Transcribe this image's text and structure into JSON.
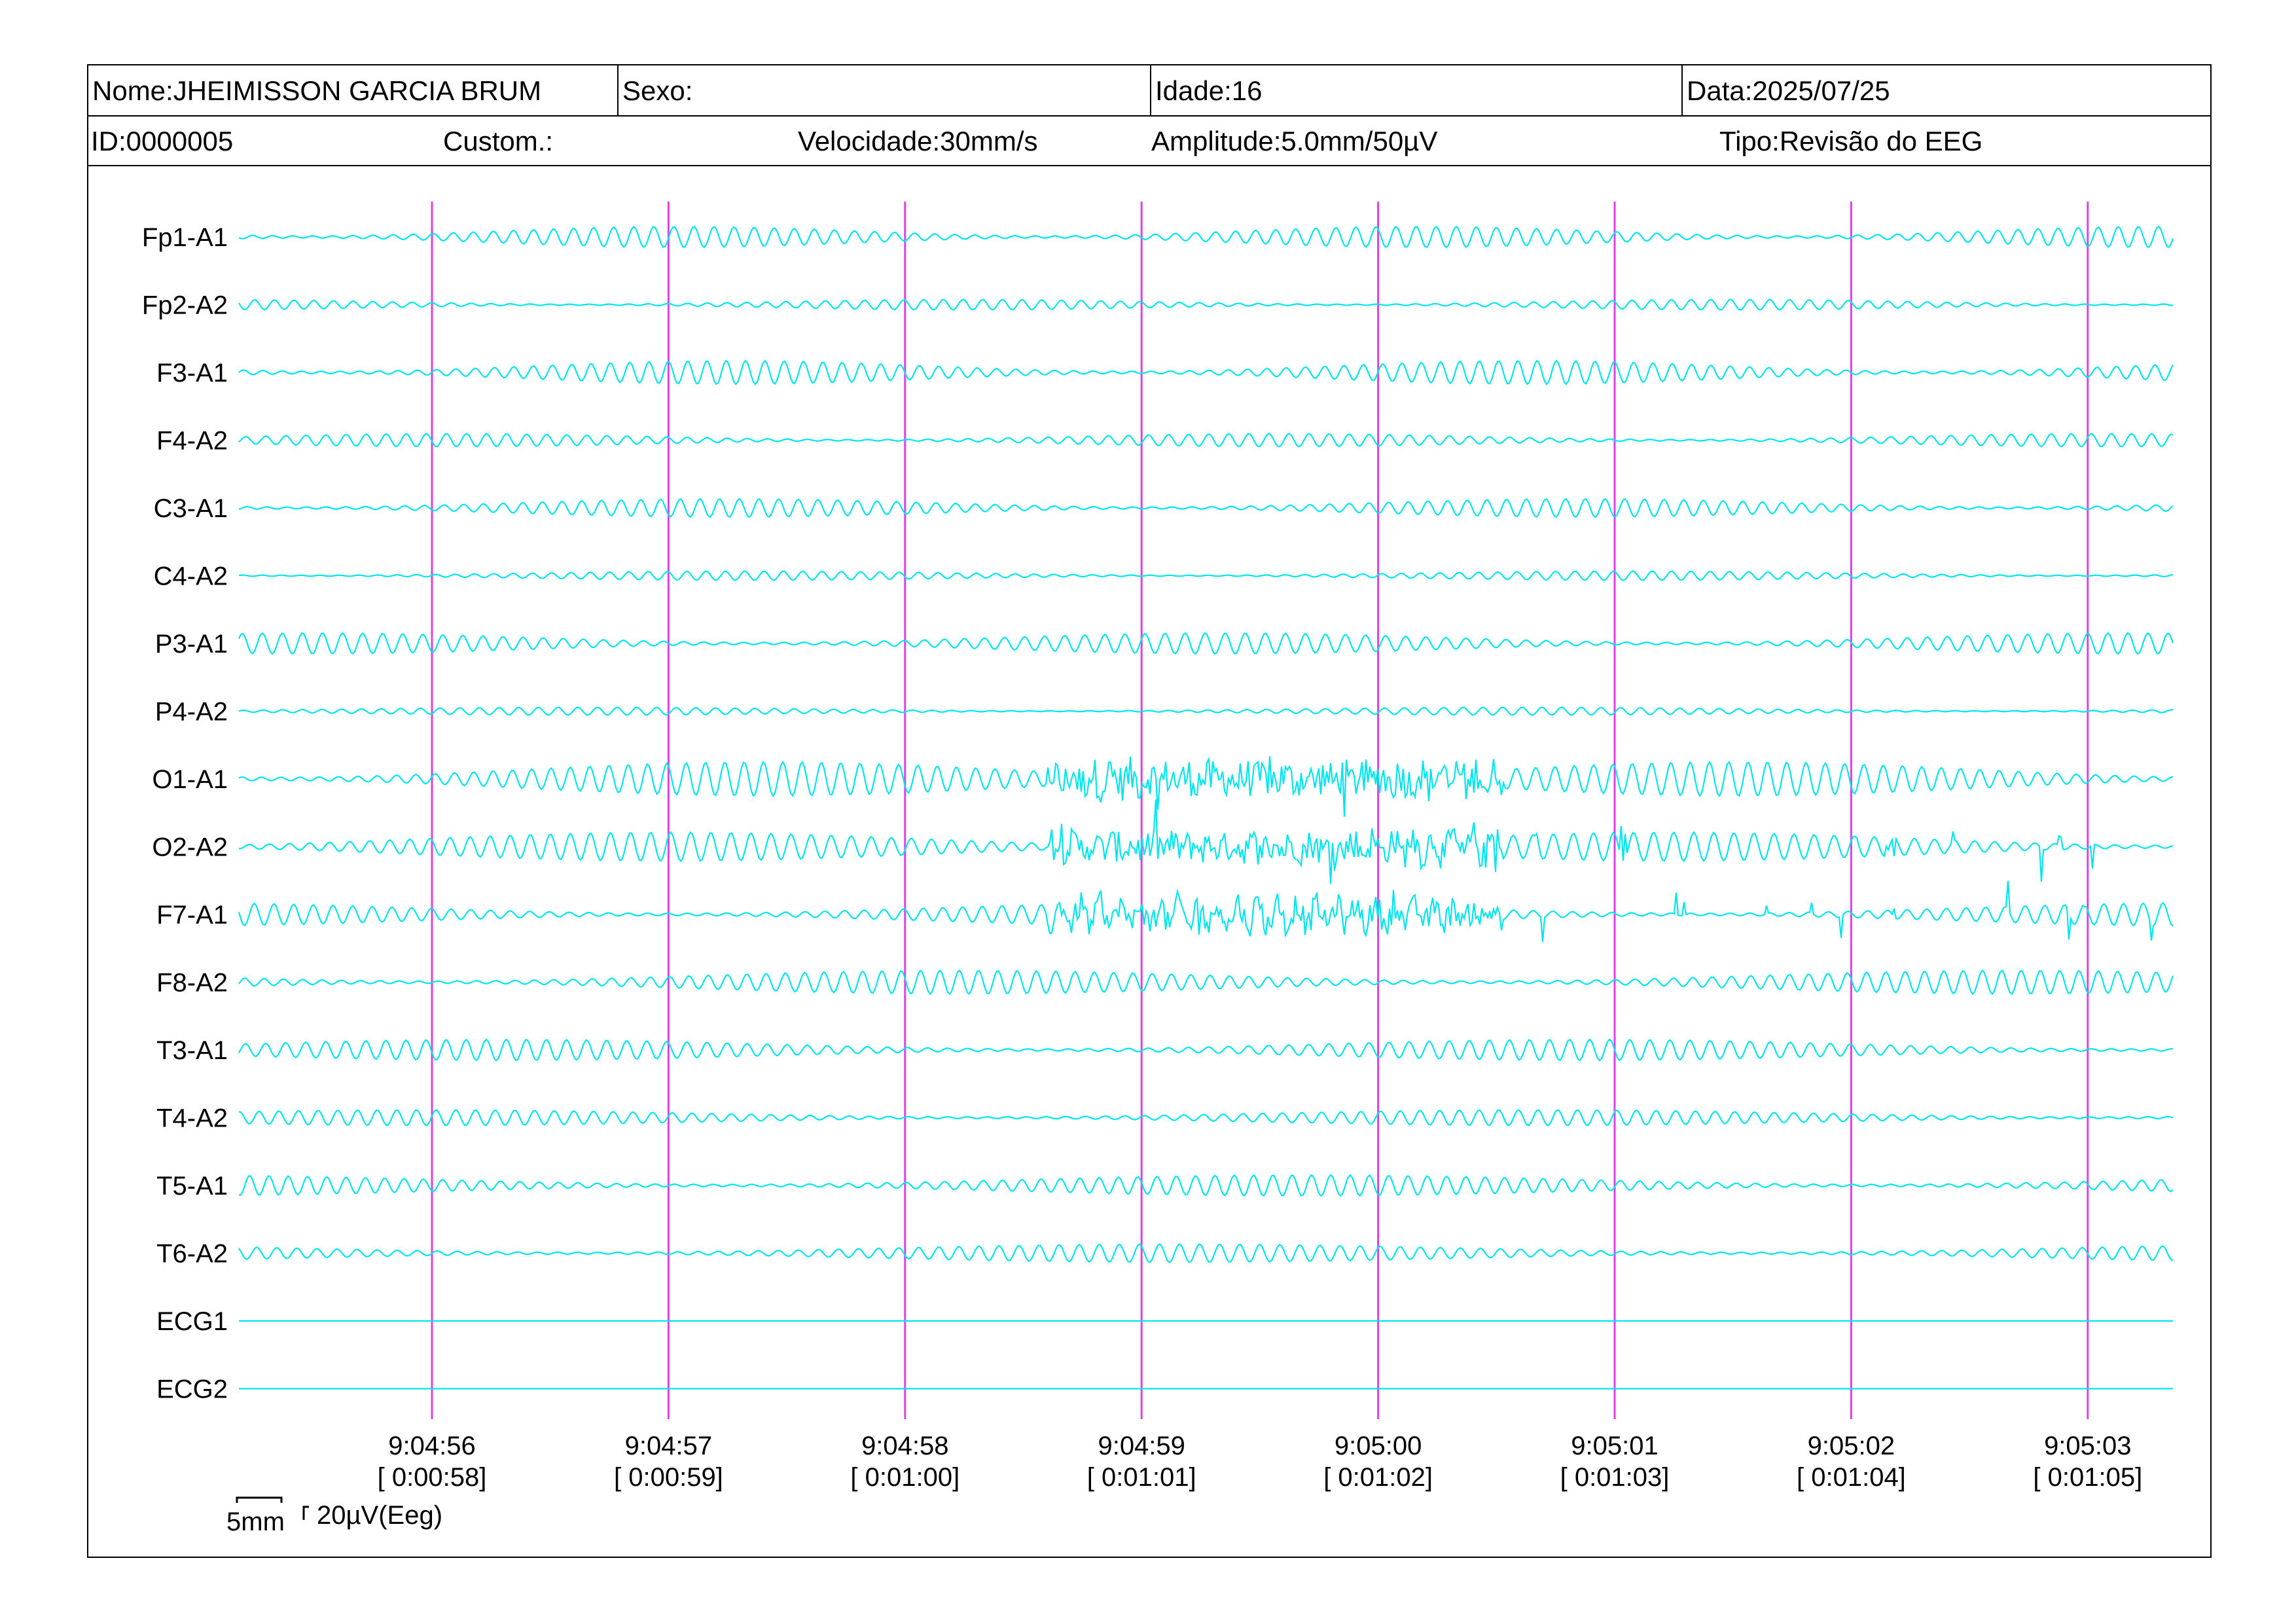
{
  "header": {
    "name_label": "Nome:JHEIMISSON GARCIA BRUM",
    "sex_label": "Sexo:",
    "age_label": "Idade:16",
    "date_label": "Data:2025/07/25",
    "id_label": "ID:0000005",
    "custom_label": "Custom.:",
    "speed_label": "Velocidade:30mm/s",
    "amplitude_label": "Amplitude:5.0mm/50µV",
    "type_label": "Tipo:Revisão do EEG"
  },
  "scale": {
    "time_label": "5mm",
    "amp_label": "20µV(Eeg)"
  },
  "colors": {
    "trace": "#00e5ee",
    "marker": "#e040e0",
    "text": "#000000",
    "border": "#000000"
  },
  "chart_data": {
    "type": "line",
    "title": "",
    "channels": [
      "Fp1-A1",
      "Fp2-A2",
      "F3-A1",
      "F4-A2",
      "C3-A1",
      "C4-A2",
      "P3-A1",
      "P4-A2",
      "O1-A1",
      "O2-A2",
      "F7-A1",
      "F8-A2",
      "T3-A1",
      "T4-A2",
      "T5-A1",
      "T6-A2",
      "ECG1",
      "ECG2"
    ],
    "time_markers": [
      {
        "clock": "9:04:56",
        "elapsed": "[ 0:00:58]"
      },
      {
        "clock": "9:04:57",
        "elapsed": "[ 0:00:59]"
      },
      {
        "clock": "9:04:58",
        "elapsed": "[ 0:01:00]"
      },
      {
        "clock": "9:04:59",
        "elapsed": "[ 0:01:01]"
      },
      {
        "clock": "9:05:00",
        "elapsed": "[ 0:01:02]"
      },
      {
        "clock": "9:05:01",
        "elapsed": "[ 0:01:03]"
      },
      {
        "clock": "9:05:02",
        "elapsed": "[ 0:01:04]"
      },
      {
        "clock": "9:05:03",
        "elapsed": "[ 0:01:05]"
      }
    ],
    "sweep_speed_mm_per_s": 30,
    "sensitivity": "5.0mm/50µV",
    "grid": false
  }
}
